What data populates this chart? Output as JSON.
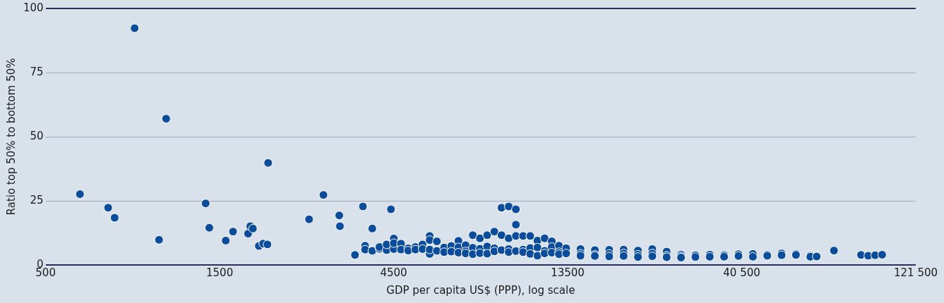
{
  "chart_data": {
    "type": "scatter",
    "xlabel": "GDP per capita US$ (PPP), log scale",
    "ylabel": "Ratio top 50% to bottom 50%",
    "log": "x",
    "grid": "y",
    "marker": "circle",
    "xlim": [
      500,
      121500
    ],
    "xticks": [
      500,
      1500,
      4500,
      13500,
      {
        "value": 40500,
        "label": "40 500"
      },
      {
        "value": 121500,
        "label": "121 500"
      }
    ],
    "ylim": [
      0,
      100
    ],
    "yticks": [
      0,
      25,
      50,
      75,
      100
    ],
    "series": [
      {
        "color": "#0b4c9b",
        "x": [
          621,
          742,
          773,
          877,
          1023,
          1070,
          1373,
          1405,
          1559,
          1632,
          1795,
          1820,
          1850,
          1921,
          1974,
          2028,
          2037,
          2638,
          2888,
          3192,
          3205,
          3525,
          3706,
          3931,
          4423,
          3757,
          3757,
          3931,
          4114,
          4114,
          4304,
          4304,
          4504,
          4504,
          4504,
          4713,
          4713,
          4932,
          4932,
          5160,
          5160,
          5400,
          5400,
          5649,
          5649,
          5649,
          5649,
          5911,
          5911,
          6186,
          6186,
          6473,
          6473,
          6772,
          6772,
          6772,
          7087,
          7087,
          7087,
          7416,
          7416,
          7416,
          7758,
          7758,
          7758,
          8119,
          8119,
          8119,
          8496,
          8496,
          8496,
          8890,
          8890,
          8890,
          9302,
          9302,
          9302,
          9302,
          9734,
          9734,
          9734,
          9734,
          10186,
          10186,
          10186,
          10656,
          10656,
          10656,
          11151,
          11151,
          11151,
          11668,
          11668,
          11668,
          12209,
          12209,
          12209,
          12776,
          12776,
          12776,
          13369,
          13369,
          14637,
          14637,
          14637,
          16026,
          16026,
          16026,
          17546,
          17546,
          17546,
          19213,
          19213,
          19213,
          21038,
          21038,
          21038,
          23030,
          23030,
          23030,
          25215,
          25215,
          25215,
          27612,
          27612,
          27612,
          30234,
          30234,
          33098,
          33098,
          36238,
          36238,
          39680,
          39680,
          43450,
          43450,
          47580,
          47580,
          52090,
          52090,
          57030,
          57030,
          62450,
          62450,
          65000,
          72500,
          86000,
          90000,
          94000,
          98260
        ],
        "values": [
          27.6,
          22.3,
          18.4,
          92.3,
          9.8,
          57,
          24,
          14.5,
          9.5,
          13,
          12.2,
          15.1,
          14.2,
          7.4,
          8.3,
          8,
          39.8,
          17.8,
          27.3,
          19.3,
          15.1,
          3.9,
          22.8,
          14.2,
          21.7,
          7.5,
          6,
          5.5,
          6.3,
          7,
          5.8,
          8,
          10.3,
          6.2,
          8.5,
          8.3,
          6,
          6.5,
          5.6,
          7,
          6,
          8,
          6.2,
          11.3,
          9.7,
          4.3,
          6,
          9.2,
          5.5,
          6.8,
          5,
          7.4,
          5.2,
          9.4,
          6.9,
          4.8,
          7.7,
          5.3,
          4.5,
          11.6,
          6.7,
          4.2,
          10.4,
          6.3,
          4.6,
          11.6,
          7.2,
          4.4,
          13,
          6.5,
          5.3,
          22.3,
          11.6,
          5.8,
          22.8,
          10.4,
          6.2,
          5,
          21.7,
          15.7,
          11.3,
          5.4,
          11.3,
          6,
          5,
          11.3,
          6.6,
          4.3,
          9.5,
          6.8,
          3.6,
          10.4,
          5.5,
          4.5,
          9.2,
          7,
          4.8,
          7.5,
          5,
          4.2,
          6.5,
          4.5,
          6.2,
          4.4,
          3.6,
          5.8,
          4,
          3.5,
          5.9,
          4.3,
          3.3,
          6,
          4.5,
          3.5,
          5.6,
          4,
          3.1,
          6.2,
          4.5,
          3.4,
          5.2,
          3.6,
          3,
          4,
          3.3,
          2.9,
          3.8,
          3.1,
          4,
          3.2,
          3.8,
          3.2,
          4.2,
          3.5,
          4.3,
          3.2,
          4,
          3.6,
          4.5,
          3.8,
          4.3,
          3.9,
          3.6,
          3.2,
          3.3,
          5.6,
          3.9,
          3.6,
          3.8,
          4
        ]
      }
    ]
  }
}
